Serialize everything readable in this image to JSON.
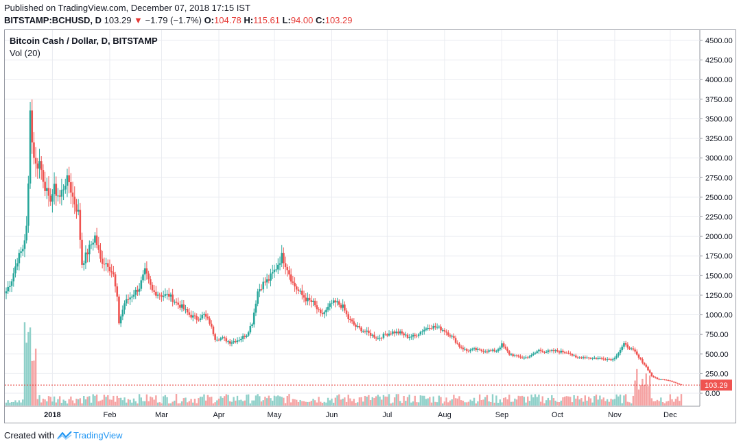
{
  "header": {
    "published": "Published on TradingView.com, December 07, 2018 17:15 IST",
    "symbol": "BITSTAMP:BCHUSD, D",
    "last": "103.29",
    "change_arrow": "▼",
    "change": "−1.79 (−1.7%)",
    "o_label": "O:",
    "o_value": "104.78",
    "h_label": "H:",
    "h_value": "115.61",
    "l_label": "L:",
    "l_value": "94.00",
    "c_label": "C:",
    "c_value": "103.29"
  },
  "chart_title": "Bitcoin Cash / Dollar, D, BITSTAMP",
  "volume_label": "Vol (20)",
  "footer": {
    "created_with": "Created with",
    "brand": "TradingView"
  },
  "colors": {
    "up": "#26a69a",
    "down": "#ef5350",
    "vol_up": "#8fd0c9",
    "vol_down": "#f5a3a3",
    "grid": "#e9ebf0",
    "price_line": "#e53935",
    "price_label_bg": "#ef5350"
  },
  "chart_data": {
    "type": "candlestick",
    "title": "Bitcoin Cash / Dollar, D, BITSTAMP",
    "y_ticks": [
      "4500.00",
      "4250.00",
      "4000.00",
      "3750.00",
      "3500.00",
      "3250.00",
      "3000.00",
      "2750.00",
      "2500.00",
      "2250.00",
      "2000.00",
      "1750.00",
      "1500.00",
      "1250.00",
      "1000.00",
      "750.00",
      "500.00",
      "250.00",
      "0.00"
    ],
    "x_ticks": [
      "2018",
      "Feb",
      "Mar",
      "Apr",
      "May",
      "Jun",
      "Jul",
      "Aug",
      "Sep",
      "Oct",
      "Nov",
      "Dec"
    ],
    "ylim": [
      0,
      4500
    ],
    "last_price_label": "103.29",
    "last_price": 103.29,
    "close_series": [
      {
        "date": "2017-12-07",
        "close": 1300
      },
      {
        "date": "2017-12-10",
        "close": 1450
      },
      {
        "date": "2017-12-13",
        "close": 1700
      },
      {
        "date": "2017-12-16",
        "close": 1850
      },
      {
        "date": "2017-12-18",
        "close": 2100
      },
      {
        "date": "2017-12-19",
        "close": 2650
      },
      {
        "date": "2017-12-20",
        "close": 3700
      },
      {
        "date": "2017-12-21",
        "close": 3200
      },
      {
        "date": "2017-12-23",
        "close": 2900
      },
      {
        "date": "2017-12-25",
        "close": 2950
      },
      {
        "date": "2017-12-27",
        "close": 2750
      },
      {
        "date": "2017-12-30",
        "close": 2450
      },
      {
        "date": "2018-01-02",
        "close": 2600
      },
      {
        "date": "2018-01-05",
        "close": 2500
      },
      {
        "date": "2018-01-08",
        "close": 2700
      },
      {
        "date": "2018-01-10",
        "close": 2700
      },
      {
        "date": "2018-01-12",
        "close": 2500
      },
      {
        "date": "2018-01-15",
        "close": 2300
      },
      {
        "date": "2018-01-17",
        "close": 1650
      },
      {
        "date": "2018-01-20",
        "close": 1800
      },
      {
        "date": "2018-01-24",
        "close": 2000
      },
      {
        "date": "2018-01-27",
        "close": 1700
      },
      {
        "date": "2018-01-31",
        "close": 1650
      },
      {
        "date": "2018-02-03",
        "close": 1500
      },
      {
        "date": "2018-02-05",
        "close": 1200
      },
      {
        "date": "2018-02-06",
        "close": 900
      },
      {
        "date": "2018-02-09",
        "close": 1150
      },
      {
        "date": "2018-02-13",
        "close": 1250
      },
      {
        "date": "2018-02-17",
        "close": 1350
      },
      {
        "date": "2018-02-20",
        "close": 1550
      },
      {
        "date": "2018-02-24",
        "close": 1300
      },
      {
        "date": "2018-03-01",
        "close": 1250
      },
      {
        "date": "2018-03-05",
        "close": 1250
      },
      {
        "date": "2018-03-09",
        "close": 1150
      },
      {
        "date": "2018-03-12",
        "close": 1100
      },
      {
        "date": "2018-03-16",
        "close": 1000
      },
      {
        "date": "2018-03-20",
        "close": 950
      },
      {
        "date": "2018-03-24",
        "close": 1000
      },
      {
        "date": "2018-03-27",
        "close": 900
      },
      {
        "date": "2018-03-30",
        "close": 700
      },
      {
        "date": "2018-04-03",
        "close": 700
      },
      {
        "date": "2018-04-07",
        "close": 650
      },
      {
        "date": "2018-04-10",
        "close": 670
      },
      {
        "date": "2018-04-13",
        "close": 700
      },
      {
        "date": "2018-04-16",
        "close": 750
      },
      {
        "date": "2018-04-19",
        "close": 900
      },
      {
        "date": "2018-04-22",
        "close": 1300
      },
      {
        "date": "2018-04-25",
        "close": 1400
      },
      {
        "date": "2018-04-28",
        "close": 1450
      },
      {
        "date": "2018-05-02",
        "close": 1600
      },
      {
        "date": "2018-05-05",
        "close": 1750
      },
      {
        "date": "2018-05-08",
        "close": 1600
      },
      {
        "date": "2018-05-11",
        "close": 1400
      },
      {
        "date": "2018-05-14",
        "close": 1300
      },
      {
        "date": "2018-05-18",
        "close": 1200
      },
      {
        "date": "2018-05-22",
        "close": 1150
      },
      {
        "date": "2018-05-26",
        "close": 1000
      },
      {
        "date": "2018-05-29",
        "close": 1050
      },
      {
        "date": "2018-06-01",
        "close": 1150
      },
      {
        "date": "2018-06-04",
        "close": 1150
      },
      {
        "date": "2018-06-07",
        "close": 1100
      },
      {
        "date": "2018-06-10",
        "close": 950
      },
      {
        "date": "2018-06-14",
        "close": 850
      },
      {
        "date": "2018-06-18",
        "close": 800
      },
      {
        "date": "2018-06-22",
        "close": 750
      },
      {
        "date": "2018-06-26",
        "close": 700
      },
      {
        "date": "2018-06-30",
        "close": 750
      },
      {
        "date": "2018-07-04",
        "close": 780
      },
      {
        "date": "2018-07-08",
        "close": 770
      },
      {
        "date": "2018-07-12",
        "close": 720
      },
      {
        "date": "2018-07-16",
        "close": 730
      },
      {
        "date": "2018-07-20",
        "close": 800
      },
      {
        "date": "2018-07-24",
        "close": 850
      },
      {
        "date": "2018-07-28",
        "close": 840
      },
      {
        "date": "2018-08-01",
        "close": 800
      },
      {
        "date": "2018-08-05",
        "close": 720
      },
      {
        "date": "2018-08-09",
        "close": 600
      },
      {
        "date": "2018-08-13",
        "close": 540
      },
      {
        "date": "2018-08-17",
        "close": 560
      },
      {
        "date": "2018-08-21",
        "close": 540
      },
      {
        "date": "2018-08-25",
        "close": 540
      },
      {
        "date": "2018-08-29",
        "close": 540
      },
      {
        "date": "2018-09-01",
        "close": 620
      },
      {
        "date": "2018-09-05",
        "close": 500
      },
      {
        "date": "2018-09-09",
        "close": 470
      },
      {
        "date": "2018-09-13",
        "close": 450
      },
      {
        "date": "2018-09-17",
        "close": 480
      },
      {
        "date": "2018-09-21",
        "close": 550
      },
      {
        "date": "2018-09-25",
        "close": 530
      },
      {
        "date": "2018-09-29",
        "close": 540
      },
      {
        "date": "2018-10-03",
        "close": 530
      },
      {
        "date": "2018-10-07",
        "close": 520
      },
      {
        "date": "2018-10-11",
        "close": 450
      },
      {
        "date": "2018-10-15",
        "close": 460
      },
      {
        "date": "2018-10-19",
        "close": 450
      },
      {
        "date": "2018-10-23",
        "close": 445
      },
      {
        "date": "2018-10-27",
        "close": 440
      },
      {
        "date": "2018-10-31",
        "close": 430
      },
      {
        "date": "2018-11-03",
        "close": 520
      },
      {
        "date": "2018-11-06",
        "close": 620
      },
      {
        "date": "2018-11-09",
        "close": 580
      },
      {
        "date": "2018-11-12",
        "close": 520
      },
      {
        "date": "2018-11-14",
        "close": 450
      },
      {
        "date": "2018-11-16",
        "close": 400
      },
      {
        "date": "2018-11-19",
        "close": 300
      },
      {
        "date": "2018-11-21",
        "close": 220
      },
      {
        "date": "2018-11-24",
        "close": 180
      },
      {
        "date": "2018-11-28",
        "close": 175
      },
      {
        "date": "2018-12-01",
        "close": 160
      },
      {
        "date": "2018-12-04",
        "close": 130
      },
      {
        "date": "2018-12-07",
        "close": 103.29
      }
    ]
  }
}
